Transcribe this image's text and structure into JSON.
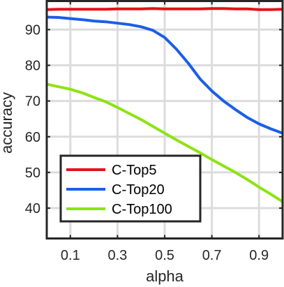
{
  "chart_data": {
    "type": "line",
    "title": "",
    "xlabel": "alpha",
    "ylabel": "accuracy",
    "xlim": [
      0.0,
      1.0
    ],
    "ylim": [
      31.5,
      98
    ],
    "xticks": [
      0.1,
      0.3,
      0.5,
      0.7,
      0.9
    ],
    "xtick_labels": [
      "0.1",
      "0.3",
      "0.5",
      "0.7",
      "0.9"
    ],
    "yticks": [
      40,
      50,
      60,
      70,
      80,
      90
    ],
    "ytick_labels": [
      "40",
      "50",
      "60",
      "70",
      "80",
      "90"
    ],
    "grid": true,
    "legend_position": "bottom-left",
    "x": [
      0.0,
      0.05,
      0.1,
      0.15,
      0.2,
      0.25,
      0.3,
      0.35,
      0.4,
      0.45,
      0.5,
      0.55,
      0.6,
      0.65,
      0.7,
      0.75,
      0.8,
      0.85,
      0.9,
      0.95,
      1.0
    ],
    "series": [
      {
        "name": "C-Top5",
        "color": "#e3121b",
        "values": [
          95.6,
          95.7,
          95.7,
          95.7,
          95.7,
          95.7,
          95.8,
          95.8,
          95.8,
          95.9,
          95.8,
          95.8,
          95.8,
          95.8,
          95.9,
          95.9,
          95.8,
          95.8,
          95.6,
          95.6,
          95.7
        ]
      },
      {
        "name": "C-Top20",
        "color": "#1a5ee8",
        "values": [
          93.5,
          93.4,
          93.1,
          92.8,
          92.4,
          92.2,
          91.8,
          91.4,
          90.8,
          89.8,
          87.8,
          84.5,
          80.6,
          76.2,
          72.8,
          70.0,
          67.6,
          65.4,
          63.6,
          62.2,
          61.0
        ]
      },
      {
        "name": "C-Top100",
        "color": "#8ee312",
        "values": [
          74.7,
          74.0,
          73.3,
          72.3,
          71.0,
          69.8,
          68.2,
          66.5,
          64.8,
          62.9,
          61.0,
          59.1,
          57.3,
          55.5,
          53.6,
          51.8,
          50.0,
          48.0,
          45.9,
          43.9,
          41.8
        ]
      }
    ]
  }
}
